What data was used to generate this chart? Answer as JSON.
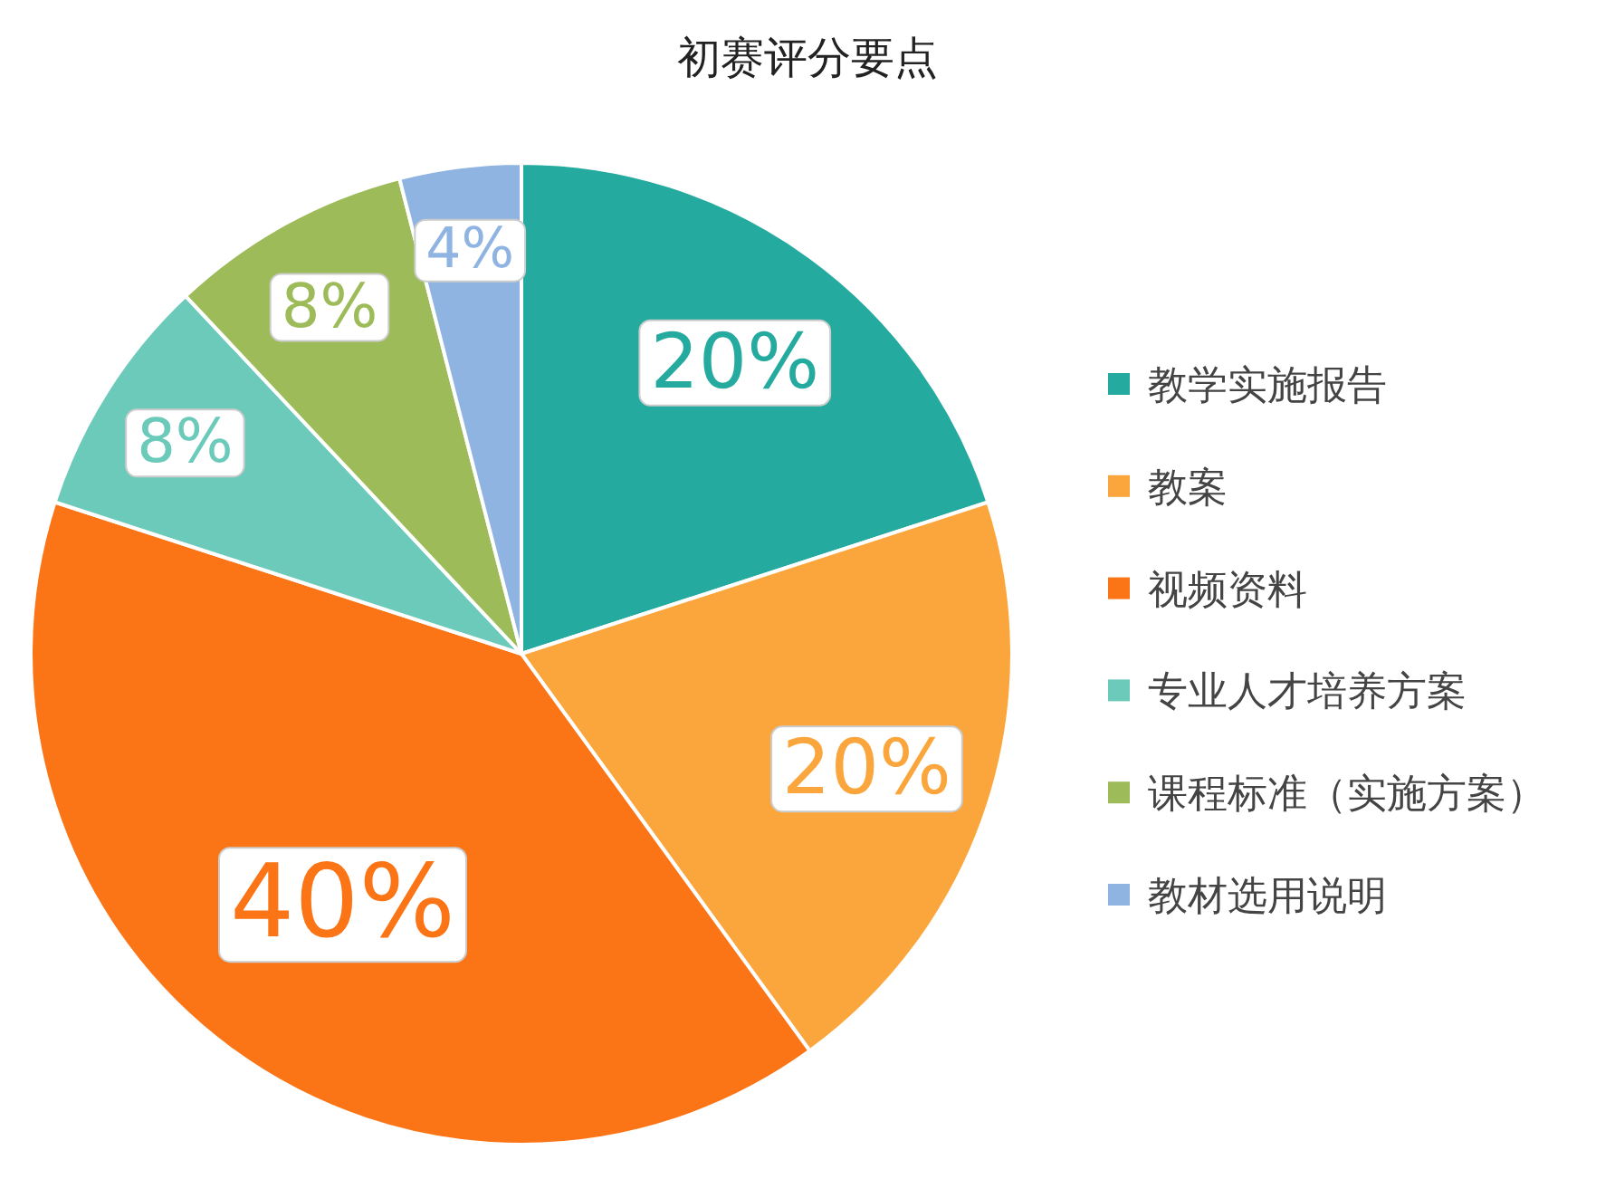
{
  "chart_data": {
    "type": "pie",
    "title": "初赛评分要点",
    "categories": [
      "教学实施报告",
      "教案",
      "视频资料",
      "专业人才培养方案",
      "课程标准（实施方案）",
      "教材选用说明"
    ],
    "values": [
      20,
      20,
      40,
      8,
      8,
      4
    ],
    "colors": [
      "#24aa9e",
      "#fba63c",
      "#fb7416",
      "#6ccabb",
      "#9dbb59",
      "#8fb4e2"
    ],
    "value_labels": [
      "20%",
      "20%",
      "40%",
      "8%",
      "8%",
      "4%"
    ],
    "legend": "right"
  }
}
